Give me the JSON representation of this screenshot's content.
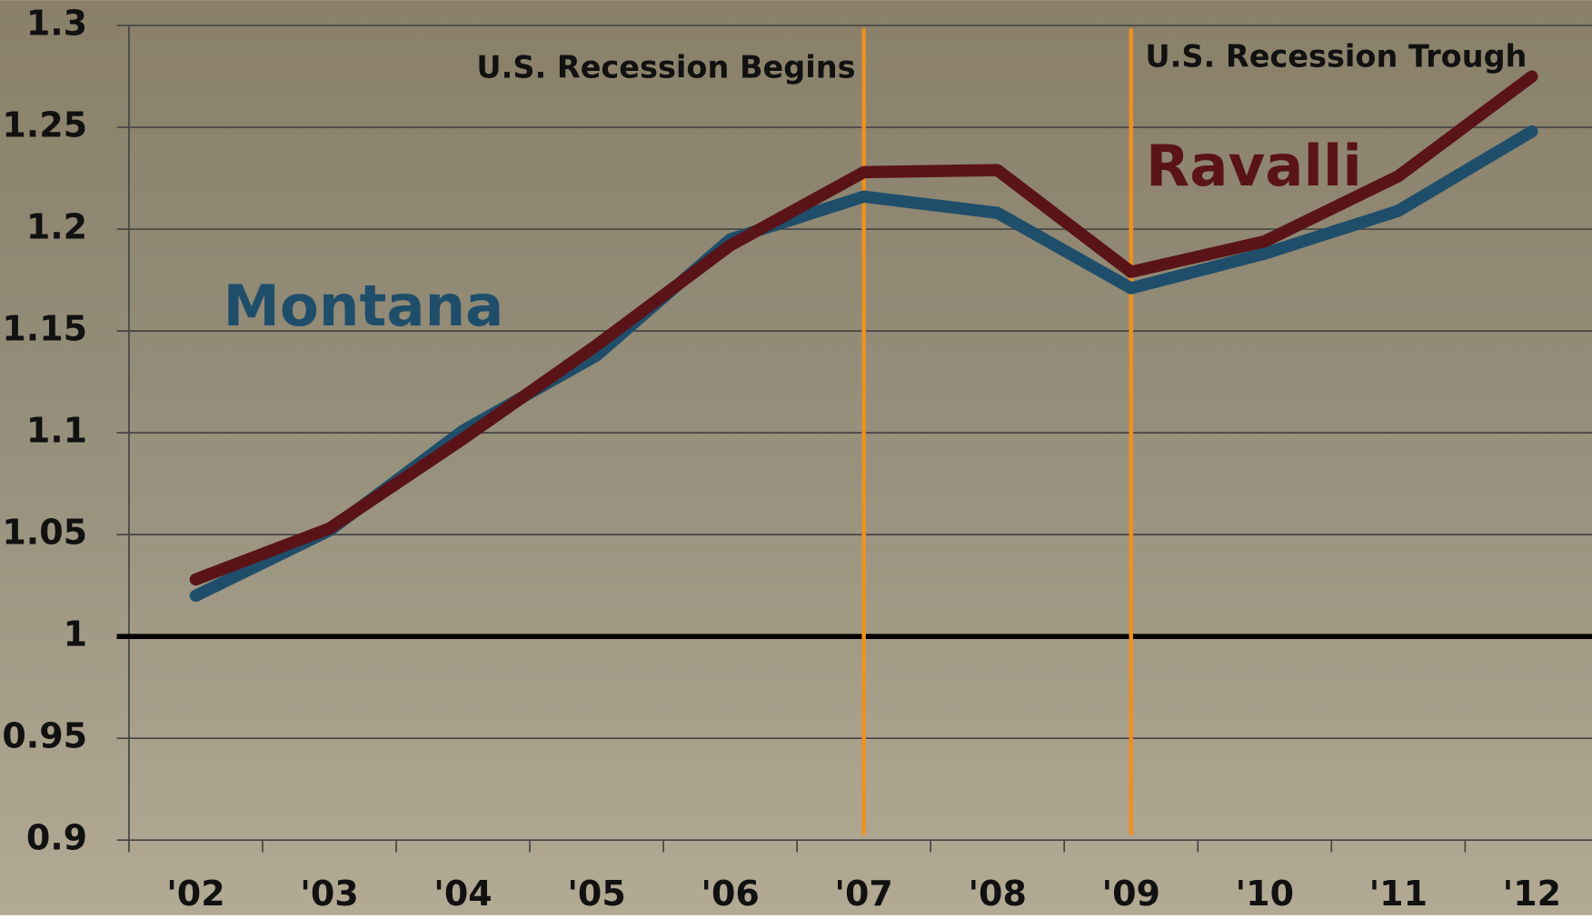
{
  "chart_data": {
    "type": "line",
    "categories": [
      "'02",
      "'03",
      "'04",
      "'05",
      "'06",
      "'07",
      "'08",
      "'09",
      "'10",
      "'11",
      "'12"
    ],
    "series": [
      {
        "name": "Montana",
        "color": "#1f4e6b",
        "values": [
          1.02,
          1.052,
          1.101,
          1.138,
          1.195,
          1.216,
          1.208,
          1.171,
          1.188,
          1.209,
          1.248
        ]
      },
      {
        "name": "Ravalli",
        "color": "#5a1418",
        "values": [
          1.028,
          1.053,
          1.097,
          1.143,
          1.192,
          1.228,
          1.229,
          1.179,
          1.194,
          1.226,
          1.275
        ]
      }
    ],
    "ylim": [
      0.9,
      1.3
    ],
    "yticks": [
      0.9,
      0.95,
      1,
      1.05,
      1.1,
      1.15,
      1.2,
      1.25,
      1.3
    ],
    "grid": true,
    "hline": 1,
    "annotations": [
      {
        "text": "U.S. Recession Begins",
        "x": "'07",
        "color": "#f0901e"
      },
      {
        "text": "U.S. Recession Trough",
        "x": "'09",
        "color": "#f0901e"
      }
    ]
  }
}
